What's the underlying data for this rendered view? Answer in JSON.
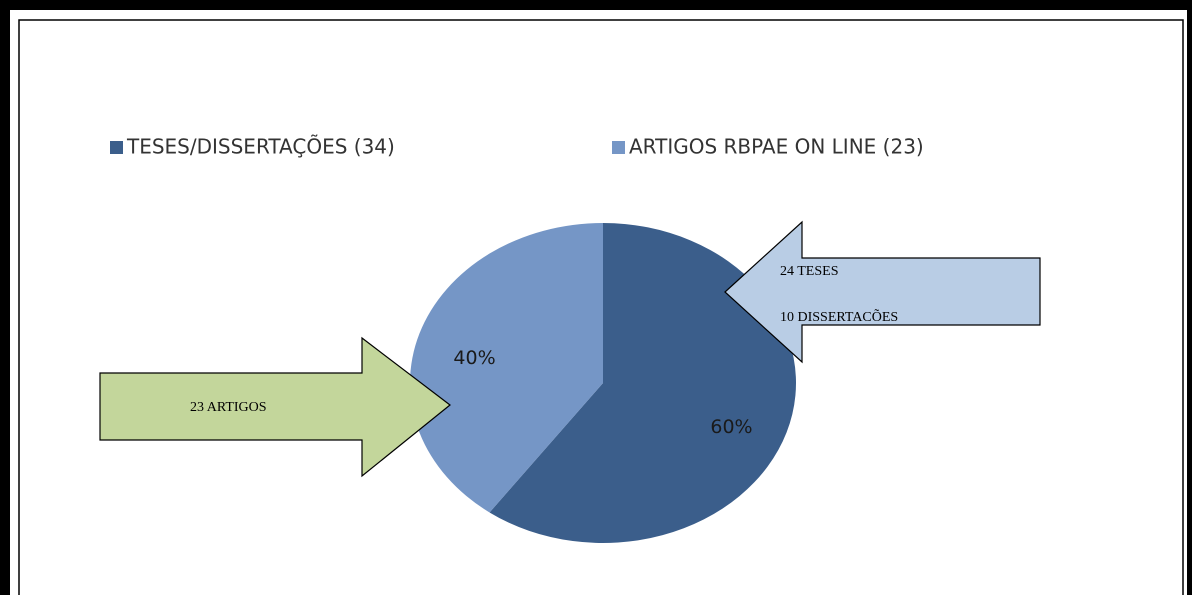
{
  "chart_data": {
    "type": "pie",
    "categories": [
      "TESES/DISSERTAÇÕES (34)",
      "ARTIGOS RBPAE ON LINE (23)"
    ],
    "values": [
      60,
      40
    ],
    "value_labels": [
      "60%",
      "40%"
    ],
    "colors": [
      "#3b5e8b",
      "#7596c6"
    ],
    "legend": "top",
    "annotations": [
      "24 TESES",
      "10 DISSERTACÕES",
      "23 ARTIGOS"
    ]
  }
}
